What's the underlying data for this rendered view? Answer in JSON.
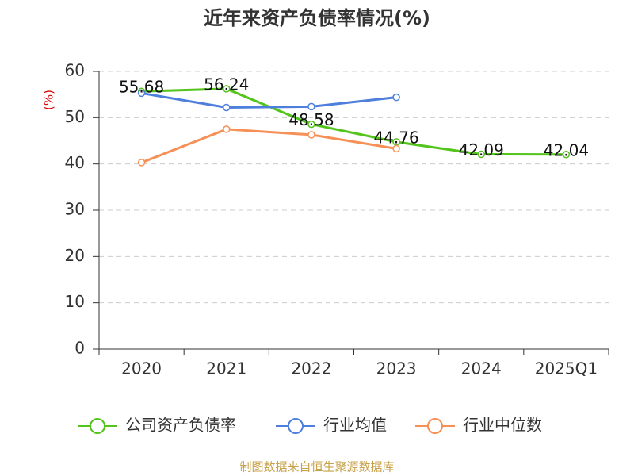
{
  "chart_data": {
    "type": "line",
    "title": "近年来资产负债率情况(%)",
    "y_label": "(%)",
    "categories": [
      "2020",
      "2021",
      "2022",
      "2023",
      "2024",
      "2025Q1"
    ],
    "series": [
      {
        "name": "公司资产负债率",
        "color": "#52c41a",
        "values": [
          55.68,
          56.24,
          48.58,
          44.76,
          42.09,
          42.04
        ],
        "show_labels": true
      },
      {
        "name": "行业均值",
        "color": "#4e7fdc",
        "values": [
          55.3,
          52.2,
          52.4,
          54.4,
          null,
          null
        ],
        "show_labels": false
      },
      {
        "name": "行业中位数",
        "color": "#f79056",
        "values": [
          40.3,
          47.5,
          46.3,
          43.3,
          null,
          null
        ],
        "show_labels": false
      }
    ],
    "ylim": [
      0,
      60
    ],
    "yticks": [
      0,
      10,
      20,
      30,
      40,
      50,
      60
    ],
    "grid": true,
    "source": "制图数据来自恒生聚源数据库"
  }
}
